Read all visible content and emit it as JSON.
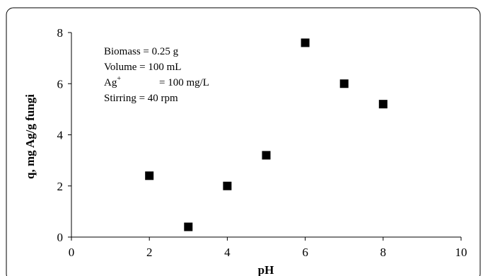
{
  "chart_data": {
    "type": "scatter",
    "title": "",
    "xlabel": "pH",
    "ylabel": "q, mg Ag/g fungi",
    "xlim": [
      0,
      10
    ],
    "ylim": [
      0,
      8
    ],
    "xticks": [
      "0",
      "2",
      "4",
      "6",
      "8",
      "10"
    ],
    "yticks": [
      "0",
      "2",
      "4",
      "6",
      "8"
    ],
    "grid": false,
    "legend": "none",
    "marker": "square",
    "marker_color": "#000000",
    "series": [
      {
        "x": [
          2,
          3,
          4,
          5,
          6,
          7,
          8
        ],
        "y": [
          2.4,
          0.4,
          2.0,
          3.2,
          7.6,
          6.0,
          5.2
        ]
      }
    ],
    "annotations": {
      "biomass": "Biomass = 0.25 g",
      "volume": "Volume  = 100 mL",
      "ag_base": "Ag",
      "ag_sup": "+",
      "ag_value": "= 100 mg/L",
      "stirring": "Stirring  = 40 rpm"
    }
  }
}
